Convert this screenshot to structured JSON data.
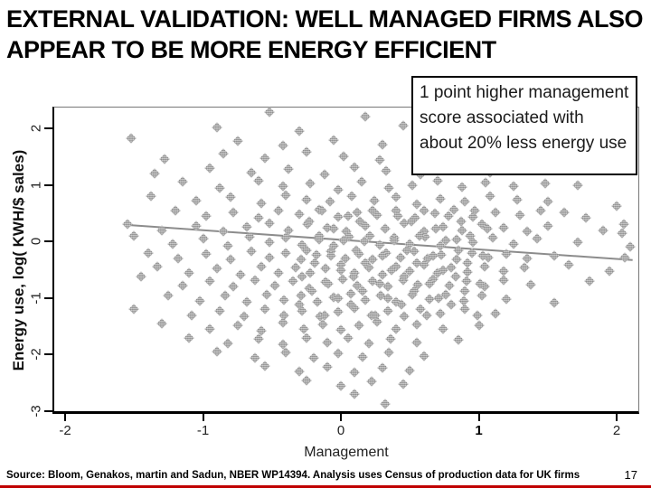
{
  "slide": {
    "title": "EXTERNAL VALIDATION: WELL MANAGED FIRMS ALSO APPEAR TO BE MORE ENERGY EFFICIENT",
    "source_text": "Source: Bloom, Genakos, martin and Sadun, NBER WP14394. Analysis uses Census of production data for UK firms",
    "page_number": "17",
    "accent_red": "#c00000"
  },
  "callout": {
    "text": "1 point higher management score associated with about 20% less energy use"
  },
  "chart_data": {
    "type": "scatter",
    "title": "",
    "xlabel": "Management",
    "ylabel": "Energy use, log( KWH/$ sales)",
    "xlim": [
      -2,
      2
    ],
    "ylim": [
      -3,
      2
    ],
    "x_ticks": [
      -2,
      -1,
      0,
      1,
      2
    ],
    "y_ticks": [
      2,
      1,
      0,
      -1,
      -2,
      -3
    ],
    "grid": "off",
    "marker_shape": "patterned-diamond",
    "marker_color": "#9a9a9a",
    "trend_line": {
      "x1": -1.54,
      "y1": 0.29,
      "x2": 2.12,
      "y2": -0.33,
      "color": "#8c8c8c",
      "slope_note": "about -0.2 log points per management point (~20% less energy use)"
    },
    "points": [
      [
        -0.52,
        2.28
      ],
      [
        0.18,
        2.2
      ],
      [
        1.2,
        2.22
      ],
      [
        -0.9,
        2.02
      ],
      [
        -0.3,
        1.95
      ],
      [
        0.45,
        2.05
      ],
      [
        0.85,
        1.96
      ],
      [
        1.3,
        1.99
      ],
      [
        -1.52,
        1.83
      ],
      [
        -0.75,
        1.78
      ],
      [
        -0.42,
        1.7
      ],
      [
        -0.05,
        1.8
      ],
      [
        0.3,
        1.72
      ],
      [
        0.62,
        1.76
      ],
      [
        0.98,
        1.7
      ],
      [
        1.7,
        1.74
      ],
      [
        -1.28,
        1.45
      ],
      [
        -0.85,
        1.55
      ],
      [
        -0.55,
        1.48
      ],
      [
        -0.25,
        1.58
      ],
      [
        0.02,
        1.5
      ],
      [
        0.28,
        1.44
      ],
      [
        0.55,
        1.55
      ],
      [
        0.8,
        1.47
      ],
      [
        1.05,
        1.52
      ],
      [
        1.45,
        1.42
      ],
      [
        -1.35,
        1.2
      ],
      [
        -0.95,
        1.3
      ],
      [
        -0.65,
        1.22
      ],
      [
        -0.38,
        1.28
      ],
      [
        -0.12,
        1.18
      ],
      [
        0.1,
        1.32
      ],
      [
        0.33,
        1.25
      ],
      [
        0.58,
        1.18
      ],
      [
        0.82,
        1.3
      ],
      [
        1.08,
        1.22
      ],
      [
        1.32,
        1.28
      ],
      [
        1.6,
        1.3
      ],
      [
        -1.15,
        1.05
      ],
      [
        -0.88,
        0.95
      ],
      [
        -0.6,
        1.08
      ],
      [
        -0.42,
        0.98
      ],
      [
        -0.22,
        1.02
      ],
      [
        -0.02,
        0.92
      ],
      [
        0.15,
        1.06
      ],
      [
        0.35,
        0.95
      ],
      [
        0.52,
        1.0
      ],
      [
        0.7,
        1.08
      ],
      [
        0.88,
        0.96
      ],
      [
        1.05,
        1.04
      ],
      [
        1.25,
        0.98
      ],
      [
        1.48,
        1.02
      ],
      [
        1.72,
        1.0
      ],
      [
        -1.38,
        0.8
      ],
      [
        -1.05,
        0.72
      ],
      [
        -0.8,
        0.78
      ],
      [
        -0.58,
        0.68
      ],
      [
        -0.4,
        0.82
      ],
      [
        -0.25,
        0.74
      ],
      [
        -0.08,
        0.7
      ],
      [
        0.08,
        0.8
      ],
      [
        0.24,
        0.72
      ],
      [
        0.4,
        0.78
      ],
      [
        0.55,
        0.66
      ],
      [
        0.72,
        0.76
      ],
      [
        0.9,
        0.7
      ],
      [
        1.08,
        0.8
      ],
      [
        1.28,
        0.74
      ],
      [
        1.5,
        0.7
      ],
      [
        1.62,
        0.52
      ],
      [
        2.0,
        0.62
      ],
      [
        -1.2,
        0.55
      ],
      [
        -0.98,
        0.45
      ],
      [
        -0.78,
        0.52
      ],
      [
        -0.6,
        0.42
      ],
      [
        -0.45,
        0.55
      ],
      [
        -0.3,
        0.48
      ],
      [
        -0.16,
        0.56
      ],
      [
        -0.02,
        0.44
      ],
      [
        0.12,
        0.52
      ],
      [
        0.26,
        0.46
      ],
      [
        0.4,
        0.55
      ],
      [
        0.54,
        0.42
      ],
      [
        0.68,
        0.5
      ],
      [
        0.82,
        0.56
      ],
      [
        0.96,
        0.44
      ],
      [
        1.12,
        0.52
      ],
      [
        1.3,
        0.46
      ],
      [
        1.45,
        0.55
      ],
      [
        1.78,
        0.42
      ],
      [
        2.05,
        0.3
      ],
      [
        -1.55,
        0.3
      ],
      [
        -1.3,
        0.2
      ],
      [
        -1.05,
        0.28
      ],
      [
        -0.85,
        0.18
      ],
      [
        -0.68,
        0.26
      ],
      [
        -0.52,
        0.32
      ],
      [
        -0.38,
        0.2
      ],
      [
        -0.24,
        0.3
      ],
      [
        -0.1,
        0.24
      ],
      [
        0.04,
        0.18
      ],
      [
        0.18,
        0.28
      ],
      [
        0.32,
        0.22
      ],
      [
        0.46,
        0.32
      ],
      [
        0.6,
        0.18
      ],
      [
        0.74,
        0.26
      ],
      [
        0.88,
        0.2
      ],
      [
        1.02,
        0.3
      ],
      [
        1.18,
        0.24
      ],
      [
        1.35,
        0.18
      ],
      [
        1.5,
        0.28
      ],
      [
        1.9,
        0.2
      ],
      [
        2.04,
        0.14
      ],
      [
        -1.5,
        0.1
      ],
      [
        -1.22,
        -0.05
      ],
      [
        -1.0,
        0.05
      ],
      [
        -0.82,
        -0.08
      ],
      [
        -0.66,
        0.08
      ],
      [
        -0.52,
        -0.02
      ],
      [
        -0.4,
        0.06
      ],
      [
        -0.28,
        -0.06
      ],
      [
        -0.16,
        0.04
      ],
      [
        -0.05,
        -0.08
      ],
      [
        0.06,
        0.08
      ],
      [
        0.17,
        0.0
      ],
      [
        0.28,
        -0.06
      ],
      [
        0.39,
        0.06
      ],
      [
        0.5,
        -0.04
      ],
      [
        0.61,
        0.08
      ],
      [
        0.72,
        -0.08
      ],
      [
        0.84,
        0.04
      ],
      [
        0.96,
        -0.02
      ],
      [
        1.1,
        0.06
      ],
      [
        1.25,
        -0.05
      ],
      [
        1.42,
        0.05
      ],
      [
        1.72,
        -0.02
      ],
      [
        2.1,
        -0.1
      ],
      [
        -1.4,
        -0.2
      ],
      [
        -1.18,
        -0.3
      ],
      [
        -0.98,
        -0.22
      ],
      [
        -0.8,
        -0.32
      ],
      [
        -0.65,
        -0.18
      ],
      [
        -0.52,
        -0.28
      ],
      [
        -0.4,
        -0.2
      ],
      [
        -0.29,
        -0.32
      ],
      [
        -0.18,
        -0.24
      ],
      [
        -0.07,
        -0.18
      ],
      [
        0.03,
        -0.3
      ],
      [
        0.13,
        -0.22
      ],
      [
        0.23,
        -0.32
      ],
      [
        0.33,
        -0.2
      ],
      [
        0.43,
        -0.28
      ],
      [
        0.53,
        -0.18
      ],
      [
        0.63,
        -0.3
      ],
      [
        0.73,
        -0.24
      ],
      [
        0.84,
        -0.32
      ],
      [
        0.95,
        -0.2
      ],
      [
        1.07,
        -0.28
      ],
      [
        1.2,
        -0.22
      ],
      [
        1.35,
        -0.3
      ],
      [
        1.55,
        -0.25
      ],
      [
        2.06,
        -0.29
      ],
      [
        -1.33,
        -0.45
      ],
      [
        -1.1,
        -0.55
      ],
      [
        -0.9,
        -0.48
      ],
      [
        -0.73,
        -0.58
      ],
      [
        -0.58,
        -0.44
      ],
      [
        -0.45,
        -0.55
      ],
      [
        -0.33,
        -0.46
      ],
      [
        -0.22,
        -0.56
      ],
      [
        -0.11,
        -0.48
      ],
      [
        0.0,
        -0.42
      ],
      [
        0.1,
        -0.55
      ],
      [
        0.2,
        -0.46
      ],
      [
        0.3,
        -0.58
      ],
      [
        0.4,
        -0.44
      ],
      [
        0.5,
        -0.52
      ],
      [
        0.6,
        -0.42
      ],
      [
        0.7,
        -0.56
      ],
      [
        0.8,
        -0.46
      ],
      [
        0.92,
        -0.54
      ],
      [
        1.04,
        -0.44
      ],
      [
        1.18,
        -0.52
      ],
      [
        1.33,
        -0.46
      ],
      [
        1.65,
        -0.42
      ],
      [
        1.95,
        -0.52
      ],
      [
        -1.45,
        -0.62
      ],
      [
        -1.15,
        -0.78
      ],
      [
        -0.95,
        -0.7
      ],
      [
        -0.78,
        -0.8
      ],
      [
        -0.62,
        -0.68
      ],
      [
        -0.48,
        -0.78
      ],
      [
        -0.35,
        -0.7
      ],
      [
        -0.23,
        -0.82
      ],
      [
        -0.11,
        -0.72
      ],
      [
        0.01,
        -0.66
      ],
      [
        0.12,
        -0.78
      ],
      [
        0.23,
        -0.7
      ],
      [
        0.34,
        -0.8
      ],
      [
        0.45,
        -0.68
      ],
      [
        0.56,
        -0.76
      ],
      [
        0.67,
        -0.66
      ],
      [
        0.79,
        -0.78
      ],
      [
        0.91,
        -0.7
      ],
      [
        1.04,
        -0.8
      ],
      [
        1.18,
        -0.68
      ],
      [
        1.38,
        -0.76
      ],
      [
        1.8,
        -0.7
      ],
      [
        -1.25,
        -0.95
      ],
      [
        -1.02,
        -1.05
      ],
      [
        -0.84,
        -0.96
      ],
      [
        -0.68,
        -1.06
      ],
      [
        -0.54,
        -0.94
      ],
      [
        -0.41,
        -1.04
      ],
      [
        -0.29,
        -0.96
      ],
      [
        -0.17,
        -1.06
      ],
      [
        -0.05,
        -0.98
      ],
      [
        0.07,
        -0.92
      ],
      [
        0.18,
        -1.04
      ],
      [
        0.29,
        -0.96
      ],
      [
        0.4,
        -1.06
      ],
      [
        0.52,
        -0.94
      ],
      [
        0.64,
        -1.02
      ],
      [
        0.76,
        -0.94
      ],
      [
        0.89,
        -1.05
      ],
      [
        1.02,
        -0.96
      ],
      [
        1.2,
        -1.02
      ],
      [
        1.55,
        -1.08
      ],
      [
        -1.5,
        -1.2
      ],
      [
        -1.08,
        -1.3
      ],
      [
        -0.88,
        -1.22
      ],
      [
        -0.7,
        -1.32
      ],
      [
        -0.55,
        -1.2
      ],
      [
        -0.41,
        -1.3
      ],
      [
        -0.28,
        -1.22
      ],
      [
        -0.15,
        -1.32
      ],
      [
        -0.02,
        -1.24
      ],
      [
        0.1,
        -1.18
      ],
      [
        0.22,
        -1.3
      ],
      [
        0.34,
        -1.22
      ],
      [
        0.46,
        -1.32
      ],
      [
        0.58,
        -1.2
      ],
      [
        0.72,
        -1.28
      ],
      [
        0.9,
        -1.2
      ],
      [
        1.12,
        -1.28
      ],
      [
        -1.3,
        -1.45
      ],
      [
        -0.95,
        -1.55
      ],
      [
        -0.75,
        -1.48
      ],
      [
        -0.58,
        -1.58
      ],
      [
        -0.42,
        -1.44
      ],
      [
        -0.27,
        -1.54
      ],
      [
        -0.13,
        -1.46
      ],
      [
        0.0,
        -1.56
      ],
      [
        0.13,
        -1.48
      ],
      [
        0.26,
        -1.42
      ],
      [
        0.4,
        -1.54
      ],
      [
        0.55,
        -1.46
      ],
      [
        0.74,
        -1.55
      ],
      [
        1.0,
        -1.48
      ],
      [
        -1.1,
        -1.7
      ],
      [
        -0.82,
        -1.8
      ],
      [
        -0.6,
        -1.72
      ],
      [
        -0.42,
        -1.82
      ],
      [
        -0.25,
        -1.7
      ],
      [
        -0.1,
        -1.78
      ],
      [
        0.05,
        -1.7
      ],
      [
        0.2,
        -1.8
      ],
      [
        0.36,
        -1.72
      ],
      [
        0.55,
        -1.78
      ],
      [
        0.85,
        -1.74
      ],
      [
        -0.9,
        -1.95
      ],
      [
        -0.62,
        -2.05
      ],
      [
        -0.4,
        -1.96
      ],
      [
        -0.2,
        -2.06
      ],
      [
        -0.02,
        -1.98
      ],
      [
        0.16,
        -2.04
      ],
      [
        0.35,
        -1.96
      ],
      [
        0.6,
        -2.02
      ],
      [
        -0.55,
        -2.2
      ],
      [
        -0.3,
        -2.3
      ],
      [
        -0.1,
        -2.22
      ],
      [
        0.1,
        -2.32
      ],
      [
        0.3,
        -2.24
      ],
      [
        0.5,
        -2.28
      ],
      [
        -0.25,
        -2.45
      ],
      [
        0.0,
        -2.55
      ],
      [
        0.22,
        -2.48
      ],
      [
        0.45,
        -2.52
      ],
      [
        0.1,
        -2.7
      ],
      [
        0.32,
        -2.88
      ],
      [
        -0.3,
        -1.12
      ],
      [
        -0.28,
        -0.62
      ],
      [
        -0.25,
        -0.15
      ],
      [
        -0.23,
        0.35
      ],
      [
        -0.21,
        -0.88
      ],
      [
        -0.19,
        -0.38
      ],
      [
        -0.16,
        0.1
      ],
      [
        -0.14,
        0.55
      ],
      [
        -0.12,
        -1.3
      ],
      [
        -0.09,
        -0.75
      ],
      [
        -0.07,
        -0.25
      ],
      [
        -0.05,
        0.22
      ],
      [
        -0.02,
        -1.0
      ],
      [
        0.0,
        -0.5
      ],
      [
        0.02,
        0.02
      ],
      [
        0.05,
        0.45
      ],
      [
        0.07,
        -1.12
      ],
      [
        0.09,
        -0.62
      ],
      [
        0.11,
        -0.15
      ],
      [
        0.14,
        0.35
      ],
      [
        0.16,
        -0.88
      ],
      [
        0.18,
        -0.38
      ],
      [
        0.21,
        0.1
      ],
      [
        0.23,
        0.55
      ],
      [
        0.25,
        -1.3
      ],
      [
        0.28,
        -0.75
      ],
      [
        0.3,
        -0.25
      ],
      [
        0.32,
        0.22
      ],
      [
        0.34,
        -1.0
      ],
      [
        0.37,
        -0.5
      ],
      [
        0.39,
        0.02
      ],
      [
        0.41,
        0.45
      ],
      [
        0.44,
        -1.12
      ],
      [
        0.46,
        -0.62
      ],
      [
        0.48,
        -0.15
      ],
      [
        0.51,
        0.35
      ],
      [
        0.53,
        -0.88
      ],
      [
        0.55,
        -0.38
      ],
      [
        0.57,
        0.1
      ],
      [
        0.6,
        0.55
      ],
      [
        0.62,
        -1.3
      ],
      [
        0.64,
        -0.75
      ],
      [
        0.67,
        -0.25
      ],
      [
        0.69,
        0.22
      ],
      [
        0.71,
        -1.0
      ],
      [
        0.74,
        -0.5
      ],
      [
        0.76,
        0.02
      ],
      [
        0.78,
        0.45
      ],
      [
        0.8,
        -1.12
      ],
      [
        0.83,
        -0.62
      ],
      [
        0.85,
        -0.15
      ],
      [
        0.87,
        0.35
      ],
      [
        0.9,
        -0.88
      ],
      [
        0.92,
        -0.38
      ],
      [
        0.94,
        0.1
      ],
      [
        0.97,
        0.55
      ],
      [
        0.99,
        -1.3
      ],
      [
        1.01,
        -0.75
      ],
      [
        1.03,
        -0.25
      ],
      [
        1.06,
        0.22
      ]
    ]
  }
}
